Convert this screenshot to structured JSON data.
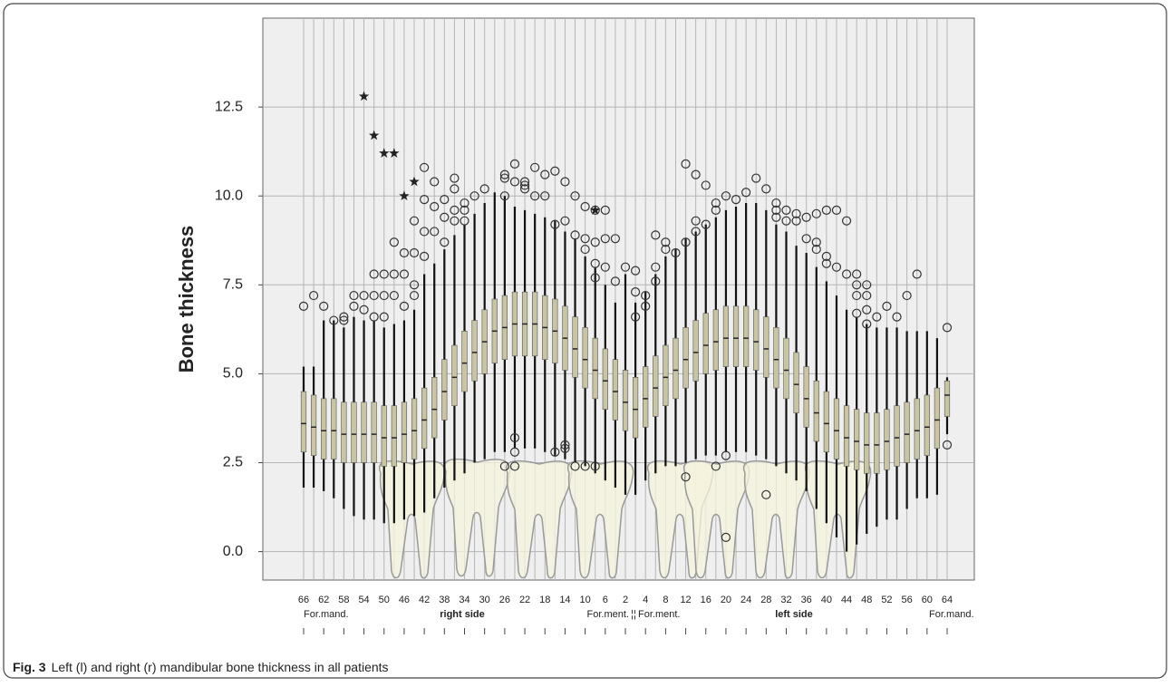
{
  "chart_data": {
    "type": "box",
    "y_label": "Bone thickness",
    "ylim": [
      -0.8,
      15
    ],
    "yticks": [
      {
        "value": 0,
        "label": "0.0"
      },
      2.5,
      {
        "value": 5,
        "label": "5.0"
      },
      7.5,
      {
        "value": 10,
        "label": "10.0"
      },
      12.5
    ],
    "grid": true,
    "box_color": "#c9c5a3",
    "categories": [
      "66",
      null,
      "62",
      null,
      "58",
      null,
      "54",
      null,
      "50",
      null,
      "46",
      null,
      "42",
      null,
      "38",
      null,
      "34",
      null,
      "30",
      null,
      "26",
      null,
      "22",
      null,
      "18",
      null,
      "14",
      null,
      "10",
      null,
      "6",
      null,
      "2",
      null,
      "4",
      null,
      "8",
      null,
      "12",
      null,
      "16",
      null,
      "20",
      null,
      "24",
      null,
      "28",
      null,
      "32",
      null,
      "36",
      null,
      "40",
      null,
      "44",
      null,
      "48",
      null,
      "52",
      null,
      "56",
      null,
      "60",
      null,
      "64"
    ],
    "whislo": [
      1.8,
      1.8,
      1.7,
      1.5,
      1.2,
      1.0,
      0.9,
      0.9,
      0.8,
      0.8,
      0.9,
      1.0,
      1.1,
      1.5,
      1.8,
      2.0,
      2.2,
      2.5,
      2.6,
      2.8,
      2.8,
      2.9,
      2.9,
      2.9,
      2.8,
      2.7,
      2.6,
      2.5,
      2.4,
      2.2,
      2.0,
      1.8,
      1.6,
      1.6,
      2.0,
      2.2,
      2.4,
      2.4,
      2.5,
      2.6,
      2.7,
      2.7,
      2.8,
      2.8,
      2.8,
      2.7,
      2.6,
      2.4,
      2.2,
      2.0,
      1.7,
      1.2,
      0.8,
      0.4,
      0.0,
      0.2,
      0.5,
      0.7,
      0.9,
      0.9,
      1.2,
      1.5,
      1.5,
      1.6,
      3.3
    ],
    "q1": [
      2.8,
      2.7,
      2.6,
      2.6,
      2.5,
      2.5,
      2.5,
      2.5,
      2.4,
      2.4,
      2.5,
      2.6,
      2.9,
      3.2,
      3.7,
      4.1,
      4.5,
      4.8,
      5.0,
      5.3,
      5.4,
      5.5,
      5.5,
      5.5,
      5.4,
      5.3,
      5.1,
      4.9,
      4.6,
      4.3,
      4.0,
      3.7,
      3.4,
      3.2,
      3.5,
      3.8,
      4.1,
      4.3,
      4.6,
      4.8,
      5.0,
      5.1,
      5.2,
      5.2,
      5.2,
      5.1,
      4.9,
      4.6,
      4.3,
      3.9,
      3.5,
      3.1,
      2.8,
      2.6,
      2.4,
      2.3,
      2.2,
      2.2,
      2.3,
      2.4,
      2.5,
      2.6,
      2.7,
      2.9,
      3.8
    ],
    "med": [
      3.6,
      3.5,
      3.4,
      3.4,
      3.3,
      3.3,
      3.3,
      3.3,
      3.2,
      3.2,
      3.3,
      3.4,
      3.7,
      4.0,
      4.5,
      4.9,
      5.3,
      5.6,
      5.9,
      6.2,
      6.3,
      6.4,
      6.4,
      6.4,
      6.3,
      6.2,
      6.0,
      5.7,
      5.4,
      5.1,
      4.8,
      4.5,
      4.2,
      4.0,
      4.3,
      4.6,
      4.9,
      5.1,
      5.4,
      5.6,
      5.8,
      5.9,
      6.0,
      6.0,
      6.0,
      5.9,
      5.7,
      5.4,
      5.1,
      4.7,
      4.3,
      3.9,
      3.6,
      3.4,
      3.2,
      3.1,
      3.0,
      3.0,
      3.1,
      3.2,
      3.3,
      3.4,
      3.5,
      3.7,
      4.4
    ],
    "q3": [
      4.5,
      4.4,
      4.3,
      4.3,
      4.2,
      4.2,
      4.2,
      4.2,
      4.1,
      4.1,
      4.2,
      4.3,
      4.6,
      4.9,
      5.4,
      5.8,
      6.2,
      6.5,
      6.8,
      7.1,
      7.2,
      7.3,
      7.3,
      7.3,
      7.2,
      7.1,
      6.9,
      6.6,
      6.3,
      6.0,
      5.7,
      5.4,
      5.1,
      4.9,
      5.2,
      5.5,
      5.8,
      6.0,
      6.3,
      6.5,
      6.7,
      6.8,
      6.9,
      6.9,
      6.9,
      6.8,
      6.6,
      6.3,
      6.0,
      5.6,
      5.2,
      4.8,
      4.5,
      4.3,
      4.1,
      4.0,
      3.9,
      3.9,
      4.0,
      4.1,
      4.2,
      4.3,
      4.4,
      4.6,
      4.8
    ],
    "whishi": [
      5.2,
      5.2,
      6.5,
      6.5,
      6.3,
      6.6,
      6.5,
      6.5,
      6.3,
      6.4,
      6.5,
      6.8,
      7.8,
      8.1,
      8.5,
      8.9,
      9.2,
      9.5,
      9.8,
      10.1,
      10.0,
      9.7,
      9.6,
      9.5,
      9.4,
      9.3,
      9.0,
      8.8,
      8.3,
      8.0,
      7.5,
      7.0,
      7.8,
      7.0,
      7.3,
      7.8,
      8.3,
      8.5,
      8.8,
      9.0,
      9.2,
      9.4,
      9.6,
      9.7,
      9.8,
      9.8,
      9.6,
      9.2,
      9.0,
      8.6,
      8.4,
      8.0,
      7.6,
      7.2,
      6.8,
      6.6,
      6.4,
      6.3,
      6.3,
      6.3,
      6.2,
      6.2,
      6.2,
      6.0,
      4.9
    ],
    "outliers": [
      [
        6.9
      ],
      [
        7.2
      ],
      [
        6.9
      ],
      [
        6.5
      ],
      [
        6.6,
        6.5
      ],
      [
        7.2,
        6.9
      ],
      [
        7.2,
        6.8
      ],
      [
        7.8,
        7.2,
        6.6
      ],
      [
        7.8,
        7.2,
        6.6
      ],
      [
        8.7,
        7.8,
        7.2
      ],
      [
        8.4,
        7.8,
        6.9
      ],
      [
        9.3,
        8.4,
        7.5,
        7.2
      ],
      [
        10.8,
        9.9,
        9.0,
        8.3
      ],
      [
        10.4,
        9.7,
        9.0
      ],
      [
        9.9,
        9.4,
        8.7
      ],
      [
        10.5,
        10.2,
        9.6,
        9.3
      ],
      [
        9.8,
        9.6,
        9.3
      ],
      [
        10.0
      ],
      [
        10.2
      ],
      [],
      [
        10.6,
        10.5,
        10.0,
        2.4
      ],
      [
        10.9,
        10.4,
        3.2,
        2.8,
        2.4
      ],
      [
        10.4,
        10.3,
        10.2
      ],
      [
        10.8,
        10.0
      ],
      [
        10.6,
        10.0
      ],
      [
        10.7,
        9.2,
        2.8
      ],
      [
        10.4,
        9.3,
        3.0,
        2.9
      ],
      [
        10.0,
        8.9,
        2.4
      ],
      [
        9.7,
        8.8,
        8.5,
        2.4
      ],
      [
        9.6,
        8.7,
        8.1,
        7.7,
        2.4
      ],
      [
        9.6,
        8.8,
        8.0
      ],
      [
        8.8,
        7.6
      ],
      [
        8.0
      ],
      [
        7.9,
        7.3,
        6.6
      ],
      [
        7.2,
        6.9
      ],
      [
        8.9,
        8.0,
        7.6
      ],
      [
        8.7,
        8.5
      ],
      [
        8.4
      ],
      [
        10.9,
        8.7,
        2.1
      ],
      [
        10.6,
        9.3,
        9.0
      ],
      [
        10.3,
        9.2
      ],
      [
        9.8,
        9.6,
        2.4
      ],
      [
        10.0,
        2.7,
        0.4
      ],
      [
        9.9
      ],
      [
        10.1
      ],
      [
        10.5
      ],
      [
        10.2,
        1.6
      ],
      [
        9.8,
        9.6,
        9.4
      ],
      [
        9.6,
        9.3
      ],
      [
        9.5,
        9.3
      ],
      [
        9.4,
        8.8
      ],
      [
        9.5,
        8.7,
        8.5
      ],
      [
        9.6,
        8.3,
        8.1
      ],
      [
        9.6,
        8.0
      ],
      [
        9.3,
        7.8
      ],
      [
        7.8,
        7.5,
        7.2,
        6.7
      ],
      [
        7.5,
        7.2,
        6.8,
        6.4
      ],
      [
        6.6
      ],
      [
        6.9
      ],
      [
        6.6
      ],
      [
        7.2
      ],
      [
        7.8
      ],
      [],
      [],
      [
        6.3,
        3.0
      ]
    ],
    "extremes": [
      [],
      [],
      [],
      [],
      [],
      [],
      [
        12.8
      ],
      [
        11.7
      ],
      [
        11.2
      ],
      [
        11.2
      ],
      [
        10.0
      ],
      [
        10.4
      ],
      [],
      [],
      [],
      [],
      [],
      [],
      [],
      [],
      [],
      [],
      [],
      [],
      [],
      [],
      [],
      [],
      [],
      [
        9.6
      ],
      [],
      [],
      [],
      [],
      [],
      [],
      [],
      [],
      [],
      [],
      [],
      [],
      [],
      [],
      [],
      [],
      [],
      [],
      [],
      [],
      [],
      [],
      [],
      [],
      [],
      [],
      [],
      [],
      [],
      [],
      [],
      [],
      [],
      [],
      []
    ],
    "annotations": [
      "For.mand.",
      "right side",
      "For.ment.",
      "¦¦",
      "For.ment.",
      "left side",
      "For.mand."
    ],
    "caption_label": "Fig. 3",
    "caption": "Left (l) and right (r) mandibular bone thickness in all patients"
  }
}
